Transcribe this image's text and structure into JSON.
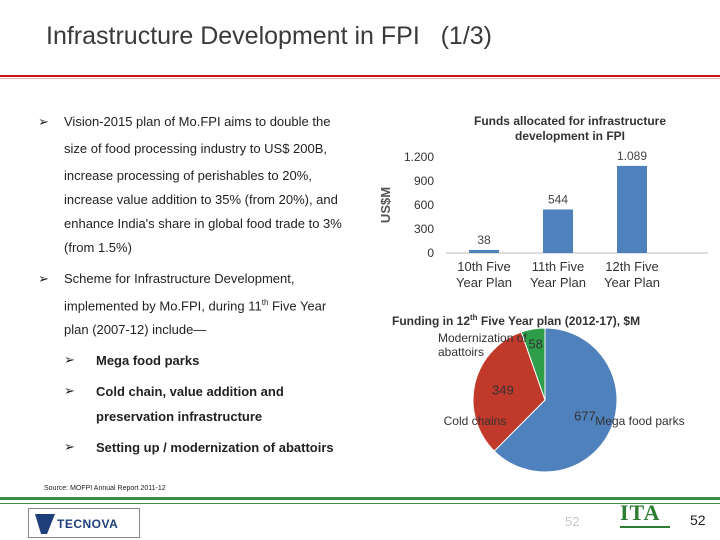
{
  "slide": {
    "title": "Infrastructure Development in FPI   (1/3)",
    "source": "Source: MOFPI Annual Report 2011-12",
    "page_number": "52",
    "page_number_ghost": "52"
  },
  "bullets": {
    "b1_lines": [
      "Vision-2015 plan of Mo.FPI aims to double the",
      "size of food processing industry to US$ 200B,",
      "increase processing of perishables to 20%,",
      "increase value addition to 35% (from 20%), and",
      "enhance India's share in global food trade to 3%",
      "(from 1.5%)"
    ],
    "b2_line1": "Scheme for Infrastructure Development,",
    "b2_line2_pre": "implemented by Mo.FPI, during 11",
    "b2_line2_sup": "th",
    "b2_line2_post": " Five Year",
    "b2_line3": "plan (2007-12) include—",
    "subs": [
      "Mega food parks",
      "Cold chain, value addition and",
      "preservation infrastructure",
      "Setting up / modernization of abattoirs"
    ]
  },
  "logos": {
    "tecnova": "TECNOVA",
    "ita": "ITA"
  },
  "colors": {
    "title_rule": "#c9151e",
    "green_rule": "#3d8d3f",
    "bar": "#4f81bd",
    "pie_blue": "#4f81bd",
    "pie_red": "#c0392b",
    "pie_green": "#2e9e4a"
  },
  "chart_data": [
    {
      "type": "bar",
      "title": "Funds allocated for infrastructure development in FPI",
      "ylabel": "US$M",
      "categories": [
        [
          "10th Five",
          "Year Plan"
        ],
        [
          "11th Five",
          "Year Plan"
        ],
        [
          "12th Five",
          "Year Plan"
        ]
      ],
      "values": [
        38,
        544,
        1089
      ],
      "value_labels": [
        "38",
        "544",
        "1.089"
      ],
      "ylim": [
        0,
        1200
      ],
      "yticks": [
        0,
        300,
        600,
        900,
        1200
      ],
      "ytick_labels": [
        "0",
        "300",
        "600",
        "900",
        "1.200"
      ],
      "grid": false
    },
    {
      "type": "pie",
      "title_pre": "Funding in 12",
      "title_sup": "th",
      "title_post": " Five Year plan (2012-17), $M",
      "slices": [
        {
          "label": "Mega food parks",
          "value": 677,
          "value_label": "677"
        },
        {
          "label": "Cold chains",
          "value": 349,
          "value_label": "349"
        },
        {
          "label": "Modernization of abattoirs",
          "label_lines": [
            "Modernization of",
            "abattoirs"
          ],
          "value": 58,
          "value_label": "58"
        }
      ]
    }
  ]
}
